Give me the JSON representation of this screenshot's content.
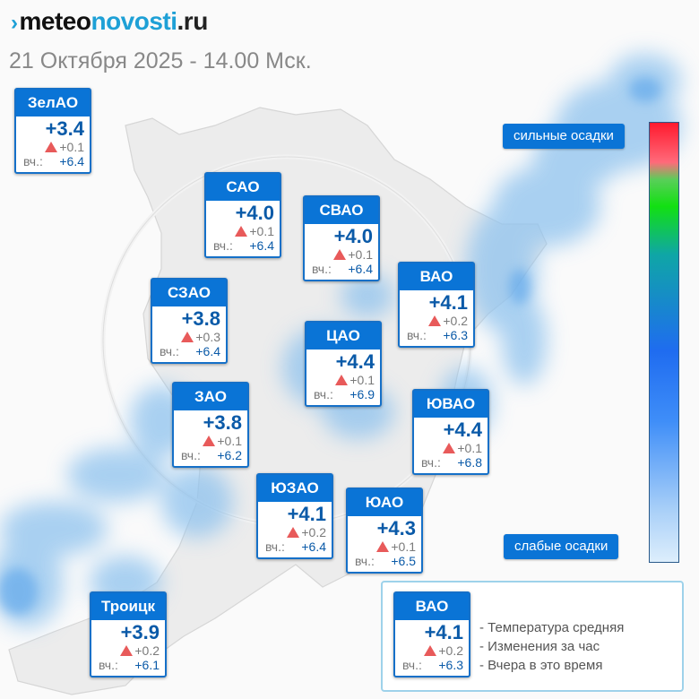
{
  "site": {
    "logo_part1": "meteo",
    "logo_part2": "novosti",
    "logo_part3": ".ru"
  },
  "date_line": "21 Октября 2025 - 14.00 Мск.",
  "yesterday_label": "вч.:",
  "districts": [
    {
      "id": "zelao",
      "name": "ЗелАО",
      "temp": "+3.4",
      "change": "+0.1",
      "yesterday": "+6.4"
    },
    {
      "id": "sao",
      "name": "САО",
      "temp": "+4.0",
      "change": "+0.1",
      "yesterday": "+6.4"
    },
    {
      "id": "svao",
      "name": "СВАО",
      "temp": "+4.0",
      "change": "+0.1",
      "yesterday": "+6.4"
    },
    {
      "id": "szao",
      "name": "СЗАО",
      "temp": "+3.8",
      "change": "+0.3",
      "yesterday": "+6.4"
    },
    {
      "id": "vao",
      "name": "ВАО",
      "temp": "+4.1",
      "change": "+0.2",
      "yesterday": "+6.3"
    },
    {
      "id": "tsao",
      "name": "ЦАО",
      "temp": "+4.4",
      "change": "+0.1",
      "yesterday": "+6.9"
    },
    {
      "id": "zao",
      "name": "ЗАО",
      "temp": "+3.8",
      "change": "+0.1",
      "yesterday": "+6.2"
    },
    {
      "id": "yuvao",
      "name": "ЮВАО",
      "temp": "+4.4",
      "change": "+0.1",
      "yesterday": "+6.8"
    },
    {
      "id": "yuzao",
      "name": "ЮЗАО",
      "temp": "+4.1",
      "change": "+0.2",
      "yesterday": "+6.4"
    },
    {
      "id": "yuao",
      "name": "ЮАО",
      "temp": "+4.3",
      "change": "+0.1",
      "yesterday": "+6.5"
    },
    {
      "id": "troitsk",
      "name": "Троицк",
      "temp": "+3.9",
      "change": "+0.2",
      "yesterday": "+6.1"
    }
  ],
  "precip_scale": {
    "strong_label": "сильные осадки",
    "weak_label": "слабые осадки"
  },
  "legend": {
    "sample": {
      "name": "ВАО",
      "temp": "+4.1",
      "change": "+0.2",
      "yesterday": "+6.3"
    },
    "items": [
      "- Температура средняя",
      "- Изменения за час",
      "- Вчера в это время"
    ]
  },
  "colors": {
    "header_blue": "#0a74d6",
    "temp_blue": "#0a5aa8",
    "rise_red": "#e85a5a",
    "logo_accent": "#1ea0d6"
  }
}
